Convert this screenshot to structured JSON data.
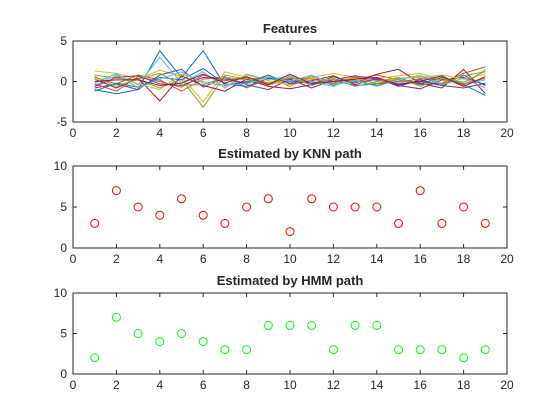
{
  "chart_data": [
    {
      "type": "line",
      "title": "Features",
      "xlabel": "",
      "ylabel": "",
      "xlim": [
        0,
        20
      ],
      "ylim": [
        -5,
        5
      ],
      "xticks": [
        0,
        2,
        4,
        6,
        8,
        10,
        12,
        14,
        16,
        18,
        20
      ],
      "yticks": [
        -5,
        0,
        5
      ],
      "grid": false,
      "x": [
        1,
        2,
        3,
        4,
        5,
        6,
        7,
        8,
        9,
        10,
        11,
        12,
        13,
        14,
        15,
        16,
        17,
        18,
        19
      ],
      "series": [
        {
          "color": "#0072bd",
          "values": [
            -1.0,
            -1.5,
            -1.0,
            3.8,
            0.5,
            3.8,
            -0.5,
            0.0,
            -0.3,
            0.0,
            -0.2,
            0.3,
            0.0,
            0.2,
            -0.3,
            0.0,
            -0.5,
            0.8,
            -0.5
          ]
        },
        {
          "color": "#d95319",
          "values": [
            0.5,
            -0.3,
            0.8,
            0.2,
            -1.2,
            0.3,
            0.6,
            -0.8,
            0.4,
            -0.2,
            0.5,
            -0.5,
            0.3,
            0.8,
            0.2,
            -0.4,
            -0.2,
            1.0,
            1.8
          ]
        },
        {
          "color": "#edb120",
          "values": [
            1.3,
            1.0,
            0.3,
            1.4,
            0.6,
            -2.5,
            1.2,
            0.5,
            -0.5,
            0.3,
            0.5,
            1.0,
            0.5,
            0.4,
            0.7,
            1.0,
            0.2,
            -0.5,
            1.5
          ]
        },
        {
          "color": "#7e2f8e",
          "values": [
            -0.8,
            -0.3,
            -1.0,
            0.8,
            1.5,
            -0.7,
            0.5,
            -0.4,
            -1.0,
            0.3,
            -0.8,
            0.2,
            0.7,
            0.3,
            -0.5,
            -0.9,
            0.2,
            0.5,
            -0.4
          ]
        },
        {
          "color": "#77ac30",
          "values": [
            0.8,
            0.4,
            0.2,
            -0.8,
            0.3,
            -3.2,
            0.8,
            0.3,
            0.5,
            -0.6,
            0.7,
            -0.3,
            0.2,
            -0.5,
            0.3,
            0.6,
            -0.3,
            0.7,
            1.2
          ]
        },
        {
          "color": "#4dbeee",
          "values": [
            -0.5,
            0.8,
            -0.4,
            3.0,
            -0.2,
            1.2,
            -0.8,
            0.9,
            0.2,
            0.7,
            0.0,
            -0.6,
            0.5,
            0.1,
            -0.2,
            0.4,
            0.6,
            -0.3,
            0.2
          ]
        },
        {
          "color": "#a2142f",
          "values": [
            0.3,
            -0.8,
            0.4,
            -2.4,
            0.7,
            -0.5,
            -1.2,
            0.3,
            -0.6,
            -0.9,
            -0.4,
            0.6,
            -0.2,
            0.9,
            1.5,
            -0.2,
            -0.8,
            1.5,
            -1.5
          ]
        },
        {
          "color": "#0072bd",
          "values": [
            -1.2,
            -0.2,
            -0.7,
            0.5,
            0.2,
            1.6,
            -0.3,
            -0.6,
            0.4,
            0.2,
            -0.2,
            0.2,
            -0.5,
            -0.3,
            0.4,
            -0.3,
            0.5,
            -0.4,
            -1.7
          ]
        },
        {
          "color": "#d95319",
          "values": [
            -0.3,
            -1.2,
            0.6,
            0.0,
            -0.7,
            0.8,
            0.1,
            0.5,
            -0.2,
            0.4,
            0.3,
            -0.2,
            0.6,
            -0.3,
            0.0,
            0.3,
            0.3,
            -0.3,
            0.4
          ]
        },
        {
          "color": "#edb120",
          "values": [
            0.2,
            0.6,
            -0.3,
            -1.0,
            0.9,
            0.0,
            -0.6,
            0.8,
            0.1,
            -0.4,
            0.4,
            0.2,
            0.4,
            -0.2,
            0.4,
            0.5,
            0.8,
            0.3,
            0.9
          ]
        },
        {
          "color": "#7e2f8e",
          "values": [
            -0.6,
            0.5,
            0.7,
            -0.3,
            -0.5,
            0.5,
            0.3,
            -0.2,
            0.8,
            -0.3,
            0.1,
            0.7,
            -0.4,
            0.4,
            -0.6,
            0.2,
            -0.5,
            -0.8,
            -0.2
          ]
        },
        {
          "color": "#77ac30",
          "values": [
            0.6,
            -0.6,
            0.3,
            1.0,
            -0.4,
            -0.4,
            0.5,
            0.2,
            -0.3,
            0.6,
            -0.5,
            0.4,
            -0.6,
            0.0,
            0.5,
            -0.6,
            0.4,
            -0.1,
            1.3
          ]
        },
        {
          "color": "#4dbeee",
          "values": [
            -0.2,
            1.0,
            -0.8,
            0.3,
            1.2,
            -0.2,
            -0.4,
            -0.3,
            0.6,
            0.0,
            0.8,
            -0.4,
            0.1,
            -0.6,
            0.2,
            0.8,
            -0.4,
            0.4,
            -0.8
          ]
        },
        {
          "color": "#a2142f",
          "values": [
            0.0,
            0.2,
            0.2,
            -0.5,
            -0.2,
            0.9,
            -0.2,
            0.6,
            -0.4,
            0.9,
            -0.3,
            0.0,
            0.3,
            0.5,
            -0.4,
            0.0,
            0.7,
            -0.6,
            0.6
          ]
        }
      ]
    },
    {
      "type": "scatter",
      "title": "Estimated by KNN path",
      "xlabel": "",
      "ylabel": "",
      "xlim": [
        0,
        20
      ],
      "ylim": [
        0,
        10
      ],
      "xticks": [
        0,
        2,
        4,
        6,
        8,
        10,
        12,
        14,
        16,
        18,
        20
      ],
      "yticks": [
        0,
        5,
        10
      ],
      "grid": false,
      "marker": "circle",
      "color": "#ff0000",
      "x": [
        1,
        2,
        3,
        4,
        5,
        6,
        7,
        8,
        9,
        10,
        11,
        12,
        13,
        14,
        15,
        16,
        17,
        18,
        19
      ],
      "values": [
        3,
        7,
        5,
        4,
        6,
        4,
        3,
        5,
        6,
        2,
        6,
        5,
        5,
        5,
        3,
        7,
        3,
        5,
        3
      ]
    },
    {
      "type": "scatter",
      "title": "Estimated by HMM path",
      "xlabel": "",
      "ylabel": "",
      "xlim": [
        0,
        20
      ],
      "ylim": [
        0,
        10
      ],
      "xticks": [
        0,
        2,
        4,
        6,
        8,
        10,
        12,
        14,
        16,
        18,
        20
      ],
      "yticks": [
        0,
        5,
        10
      ],
      "grid": false,
      "marker": "circle",
      "color": "#00ff00",
      "x": [
        1,
        2,
        3,
        4,
        5,
        6,
        7,
        8,
        9,
        10,
        11,
        12,
        13,
        14,
        15,
        16,
        17,
        18,
        19
      ],
      "values": [
        2,
        7,
        5,
        4,
        5,
        4,
        3,
        3,
        6,
        6,
        6,
        3,
        6,
        6,
        3,
        3,
        3,
        2,
        3
      ]
    }
  ]
}
